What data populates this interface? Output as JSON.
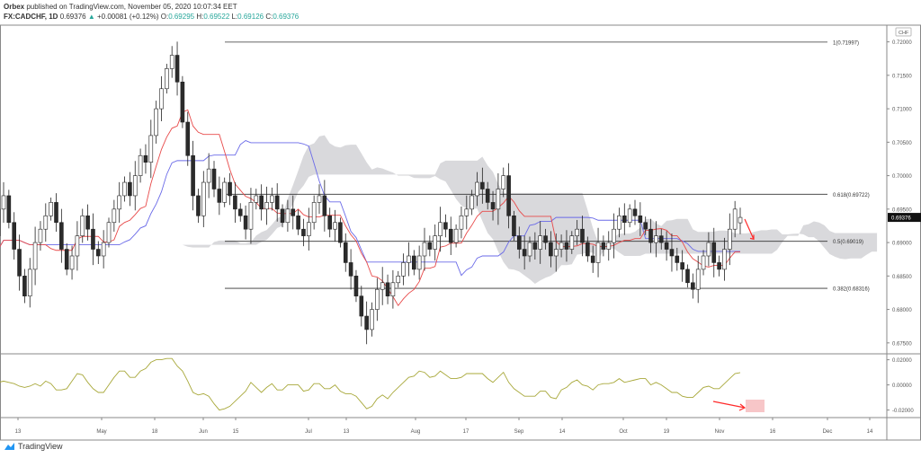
{
  "header": {
    "publisher": "Orbex",
    "published_text": "published on TradingView.com, November 05, 2020 10:07:34 EET",
    "symbol": "FX:CADCHF, 1D",
    "last": "0.69376",
    "change": "+0.00081 (+0.12%)",
    "open_label": "O:",
    "open": "0.69295",
    "high_label": "H:",
    "high": "0.69522",
    "low_label": "L:",
    "low": "0.69126",
    "close_label": "C:",
    "close": "0.69376"
  },
  "footer": {
    "brand": "TradingView"
  },
  "colors": {
    "up": "#ffffff",
    "down": "#2b2b2b",
    "tenkan": "#e84a4a",
    "kijun": "#6a6ae8",
    "cloud": "#d9d9dc",
    "oscillator": "#a8a83a",
    "annotation": "#ff2a2a",
    "box": "#f7c6c8"
  },
  "chart_data": [
    {
      "type": "candlestick",
      "title": "",
      "currency_label": "CHF",
      "ylim": [
        0.6735,
        0.7225
      ],
      "y_ticks": [
        "0.72000",
        "0.71500",
        "0.71000",
        "0.70500",
        "0.70000",
        "0.69500",
        "0.69000",
        "0.68500",
        "0.68000",
        "0.67500"
      ],
      "last_price_label": "0.69376",
      "x_ticks": [
        "13",
        "May",
        "18",
        "Jun",
        "15",
        "Jul",
        "13",
        "Aug",
        "17",
        "Sep",
        "14",
        "Oct",
        "19",
        "Nov",
        "16",
        "Dec",
        "14"
      ],
      "overlays": [
        "Ichimoku cloud",
        "conversion line",
        "base line"
      ],
      "fib_levels": [
        {
          "label": "1(0.71997)",
          "value": 0.71997
        },
        {
          "label": "0.618(0.69722)",
          "value": 0.69722
        },
        {
          "label": "0.5(0.69019)",
          "value": 0.69019
        },
        {
          "label": "0.382(0.68316)",
          "value": 0.68316
        }
      ],
      "closes": [
        0.692,
        0.69,
        0.693,
        0.694,
        0.691,
        0.688,
        0.686,
        0.684,
        0.687,
        0.689,
        0.693,
        0.691,
        0.695,
        0.697,
        0.693,
        0.689,
        0.685,
        0.682,
        0.686,
        0.69,
        0.692,
        0.694,
        0.696,
        0.693,
        0.689,
        0.686,
        0.688,
        0.691,
        0.694,
        0.692,
        0.689,
        0.688,
        0.69,
        0.693,
        0.695,
        0.697,
        0.699,
        0.697,
        0.7,
        0.703,
        0.702,
        0.706,
        0.71,
        0.713,
        0.716,
        0.718,
        0.714,
        0.708,
        0.703,
        0.697,
        0.694,
        0.699,
        0.701,
        0.698,
        0.696,
        0.699,
        0.697,
        0.695,
        0.694,
        0.692,
        0.696,
        0.697,
        0.695,
        0.696,
        0.697,
        0.695,
        0.693,
        0.695,
        0.694,
        0.692,
        0.691,
        0.693,
        0.696,
        0.697,
        0.694,
        0.692,
        0.693,
        0.69,
        0.687,
        0.685,
        0.682,
        0.679,
        0.677,
        0.68,
        0.683,
        0.684,
        0.682,
        0.684,
        0.685,
        0.687,
        0.688,
        0.686,
        0.688,
        0.69,
        0.689,
        0.691,
        0.693,
        0.692,
        0.69,
        0.692,
        0.694,
        0.695,
        0.697,
        0.699,
        0.698,
        0.696,
        0.695,
        0.698,
        0.7,
        0.694,
        0.691,
        0.689,
        0.688,
        0.69,
        0.689,
        0.691,
        0.69,
        0.688,
        0.689,
        0.69,
        0.689,
        0.691,
        0.692,
        0.69,
        0.688,
        0.687,
        0.69,
        0.689,
        0.69,
        0.692,
        0.694,
        0.693,
        0.695,
        0.694,
        0.693,
        0.692,
        0.69,
        0.691,
        0.69,
        0.689,
        0.688,
        0.687,
        0.686,
        0.684,
        0.683,
        0.686,
        0.688,
        0.69,
        0.687,
        0.686,
        0.689,
        0.692,
        0.695,
        0.69376
      ]
    },
    {
      "type": "line",
      "title": "",
      "ylim": [
        -0.026,
        0.024
      ],
      "y_ticks": [
        "0.02000",
        "0.00000",
        "-0.02000"
      ]
    }
  ]
}
